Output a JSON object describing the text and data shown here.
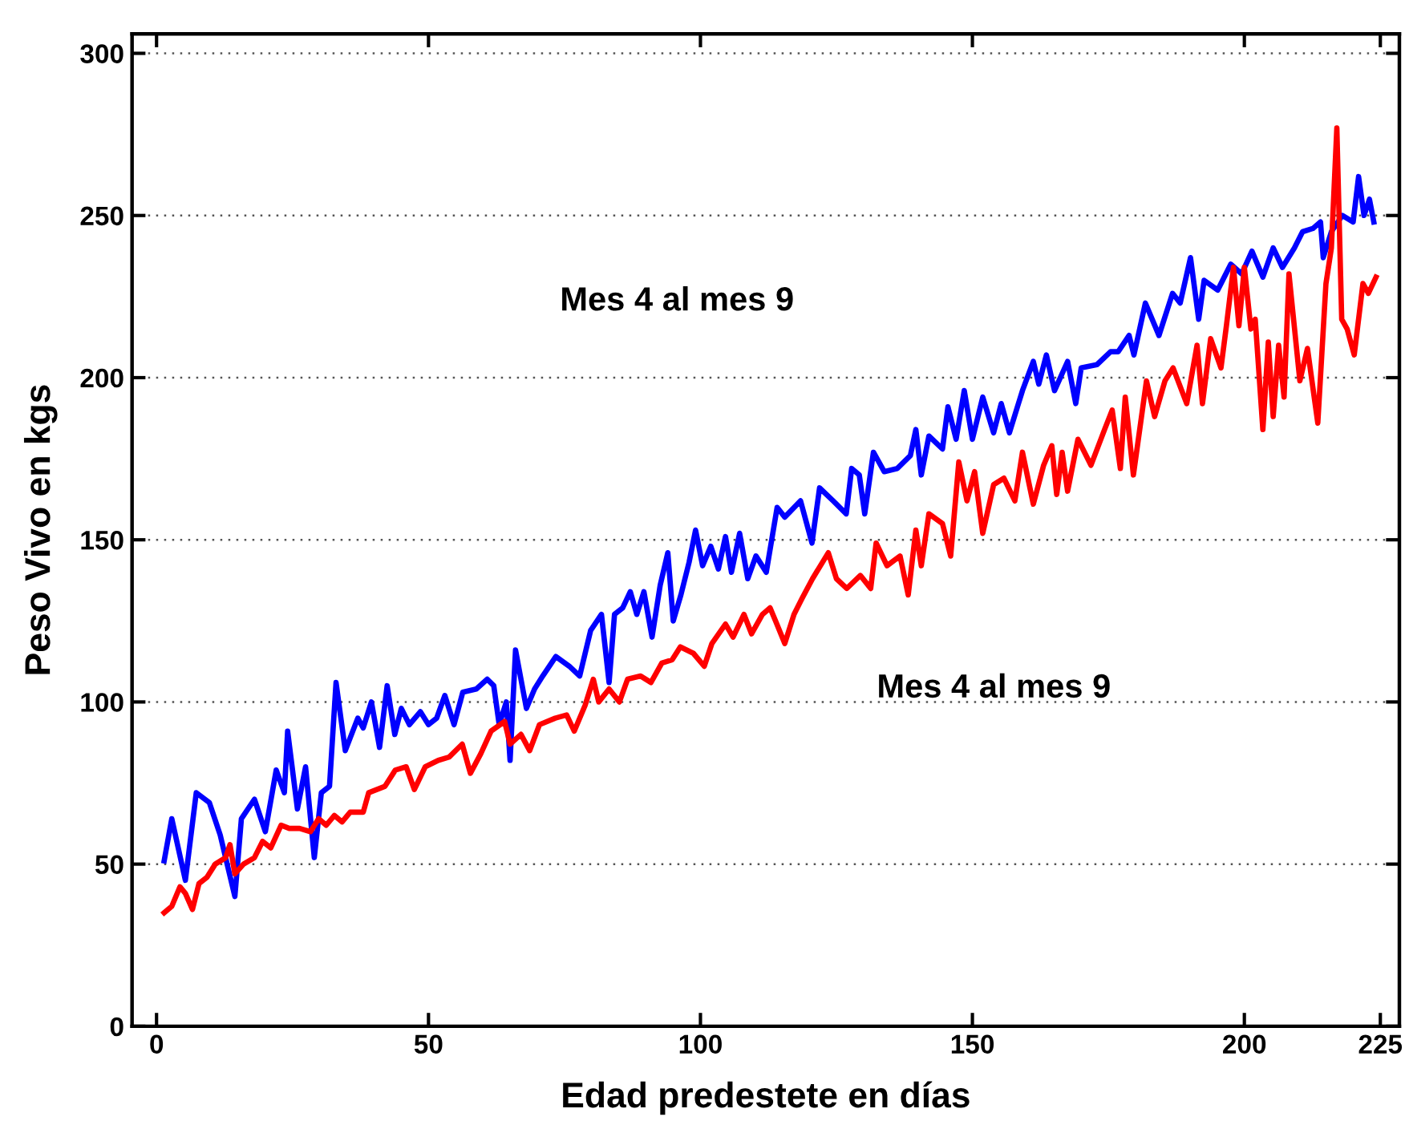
{
  "chart_data": {
    "type": "line",
    "xlabel": "Edad predestete en días",
    "ylabel": "Peso Vivo en kgs",
    "xlim": [
      -4.5,
      228.5
    ],
    "ylim": [
      0,
      306
    ],
    "xticks": [
      0,
      50,
      100,
      150,
      200,
      225
    ],
    "yticks": [
      0,
      50,
      100,
      150,
      200,
      250,
      300
    ],
    "grid": "y",
    "line_style": "solid",
    "marker": "none",
    "annotations": [
      "Mes 4 al mes 9",
      "Mes 4 al mes 9"
    ],
    "series": [
      {
        "color": "#0000ff",
        "x": [
          1.4,
          2.8,
          5.3,
          7.3,
          9.7,
          11.7,
          14.4,
          15.6,
          18,
          20,
          22,
          23.5,
          24.1,
          25.9,
          27.4,
          29,
          30.3,
          31.8,
          33,
          34.7,
          37,
          38,
          39.5,
          41,
          42.4,
          43.8,
          45,
          46.5,
          48.5,
          50,
          51.5,
          53,
          54.7,
          56.3,
          58.8,
          60.8,
          62,
          63,
          64.3,
          65,
          66,
          68,
          69.5,
          71,
          73.4,
          75.9,
          77.8,
          79.8,
          81.8,
          83.2,
          84.2,
          85.7,
          87.1,
          88.3,
          89.6,
          91.1,
          92.6,
          94,
          95,
          96.4,
          97.9,
          99.1,
          100.4,
          101.9,
          103.3,
          104.6,
          105.7,
          107.2,
          108.7,
          110.2,
          112.1,
          114.1,
          115.5,
          118.4,
          120.5,
          121.9,
          124.4,
          126.8,
          127.8,
          129.2,
          130.2,
          131.8,
          133.8,
          136.2,
          138.6,
          139.6,
          140.6,
          142,
          144.5,
          145.5,
          147,
          148.5,
          150,
          151.9,
          153.9,
          155.3,
          156.8,
          159.2,
          161.2,
          162.2,
          163.6,
          165.1,
          167.5,
          169,
          170,
          172.9,
          175.4,
          176.8,
          178.8,
          179.7,
          181.8,
          184.3,
          186.8,
          188.2,
          190.1,
          191.6,
          192.6,
          195.1,
          197.5,
          199.5,
          201.4,
          203.4,
          205.3,
          207,
          209.2,
          210.7,
          212.6,
          214,
          214.5,
          216,
          218,
          220,
          221,
          222,
          223,
          223.8
        ],
        "values": [
          51,
          64,
          45,
          72,
          69,
          59,
          40,
          64,
          70,
          60,
          79,
          72,
          91,
          67,
          80,
          52,
          72,
          74,
          106,
          85,
          95,
          92,
          100,
          86,
          105,
          90,
          98,
          93,
          97,
          93,
          95,
          102,
          93,
          103,
          104,
          107,
          105,
          93,
          100,
          82,
          116,
          98,
          104,
          108,
          114,
          111,
          108,
          122,
          127,
          106,
          127,
          129,
          134,
          127,
          134,
          120,
          136,
          146,
          125,
          133,
          143,
          153,
          142,
          148,
          141,
          151,
          140,
          152,
          138,
          145,
          140,
          160,
          157,
          162,
          149,
          166,
          162,
          158,
          172,
          170,
          158,
          177,
          171,
          172,
          176,
          184,
          170,
          182,
          178,
          191,
          181,
          196,
          181,
          194,
          183,
          192,
          183,
          196,
          205,
          198,
          207,
          196,
          205,
          192,
          203,
          204,
          208,
          208,
          213,
          207,
          223,
          213,
          226,
          223,
          237,
          218,
          230,
          227,
          235,
          232,
          239,
          231,
          240,
          234,
          240,
          245,
          246,
          248,
          237,
          245,
          250,
          248,
          262,
          250,
          255,
          248
        ]
      },
      {
        "color": "#ff0000",
        "x": [
          1.4,
          2.8,
          4.3,
          5.3,
          6.6,
          7.8,
          9.3,
          10.8,
          12.7,
          13.5,
          14.4,
          16,
          18,
          19.5,
          21,
          22.9,
          24.4,
          26.3,
          28.3,
          29.8,
          31.2,
          32.7,
          34.1,
          35.6,
          38,
          39,
          42,
          43.9,
          45.9,
          47.4,
          49.4,
          51.8,
          53.8,
          56.2,
          57.7,
          59.6,
          61.5,
          64,
          65,
          67,
          68.6,
          70.4,
          73.3,
          75.4,
          76.8,
          78.8,
          80.3,
          81.3,
          83.2,
          85.1,
          86.6,
          89,
          90.9,
          92.9,
          94.8,
          96.3,
          98.7,
          100.7,
          102.1,
          104.6,
          106,
          108,
          109.4,
          111.4,
          112.8,
          113.8,
          115.5,
          117.2,
          118.7,
          120.6,
          123.5,
          125,
          126.9,
          129.4,
          131.3,
          132.3,
          134.3,
          136.7,
          138.2,
          139.6,
          140.6,
          142,
          144.5,
          146,
          147.5,
          149,
          150.4,
          151.9,
          153.9,
          155.8,
          157.8,
          159.2,
          161.2,
          163.1,
          164.6,
          165.5,
          166.5,
          167.5,
          169.4,
          171.8,
          174.3,
          175.7,
          177.2,
          178.1,
          179.6,
          182,
          183.5,
          185.4,
          186.9,
          189.4,
          191.3,
          192.3,
          193.8,
          195.7,
          196.7,
          198,
          199,
          200,
          201.2,
          202,
          203.4,
          204.4,
          205.3,
          206.3,
          207.3,
          208.2,
          210.2,
          211.6,
          213.5,
          215,
          216,
          217,
          217.9,
          218.9,
          220.2,
          221.8,
          222.8,
          224.2
        ],
        "values": [
          35,
          37,
          43,
          41,
          36,
          44,
          46,
          50,
          52,
          56,
          47,
          50,
          52,
          57,
          55,
          62,
          61,
          61,
          60,
          64,
          62,
          65,
          63,
          66,
          66,
          72,
          74,
          79,
          80,
          73,
          80,
          82,
          83,
          87,
          78,
          84,
          91,
          94,
          87,
          90,
          85,
          93,
          95,
          96,
          91,
          99,
          107,
          100,
          104,
          100,
          107,
          108,
          106,
          112,
          113,
          117,
          115,
          111,
          118,
          124,
          120,
          127,
          121,
          127,
          129,
          125,
          118,
          127,
          132,
          138,
          146,
          138,
          135,
          139,
          135,
          149,
          142,
          145,
          133,
          153,
          142,
          158,
          155,
          145,
          174,
          162,
          171,
          152,
          167,
          169,
          162,
          177,
          161,
          173,
          179,
          164,
          177,
          165,
          181,
          173,
          184,
          190,
          172,
          194,
          170,
          199,
          188,
          199,
          203,
          192,
          210,
          192,
          212,
          203,
          216,
          234,
          216,
          234,
          215,
          218,
          184,
          211,
          188,
          210,
          194,
          232,
          199,
          209,
          186,
          229,
          240,
          277,
          218,
          215,
          207,
          229,
          226,
          231
        ]
      }
    ]
  }
}
